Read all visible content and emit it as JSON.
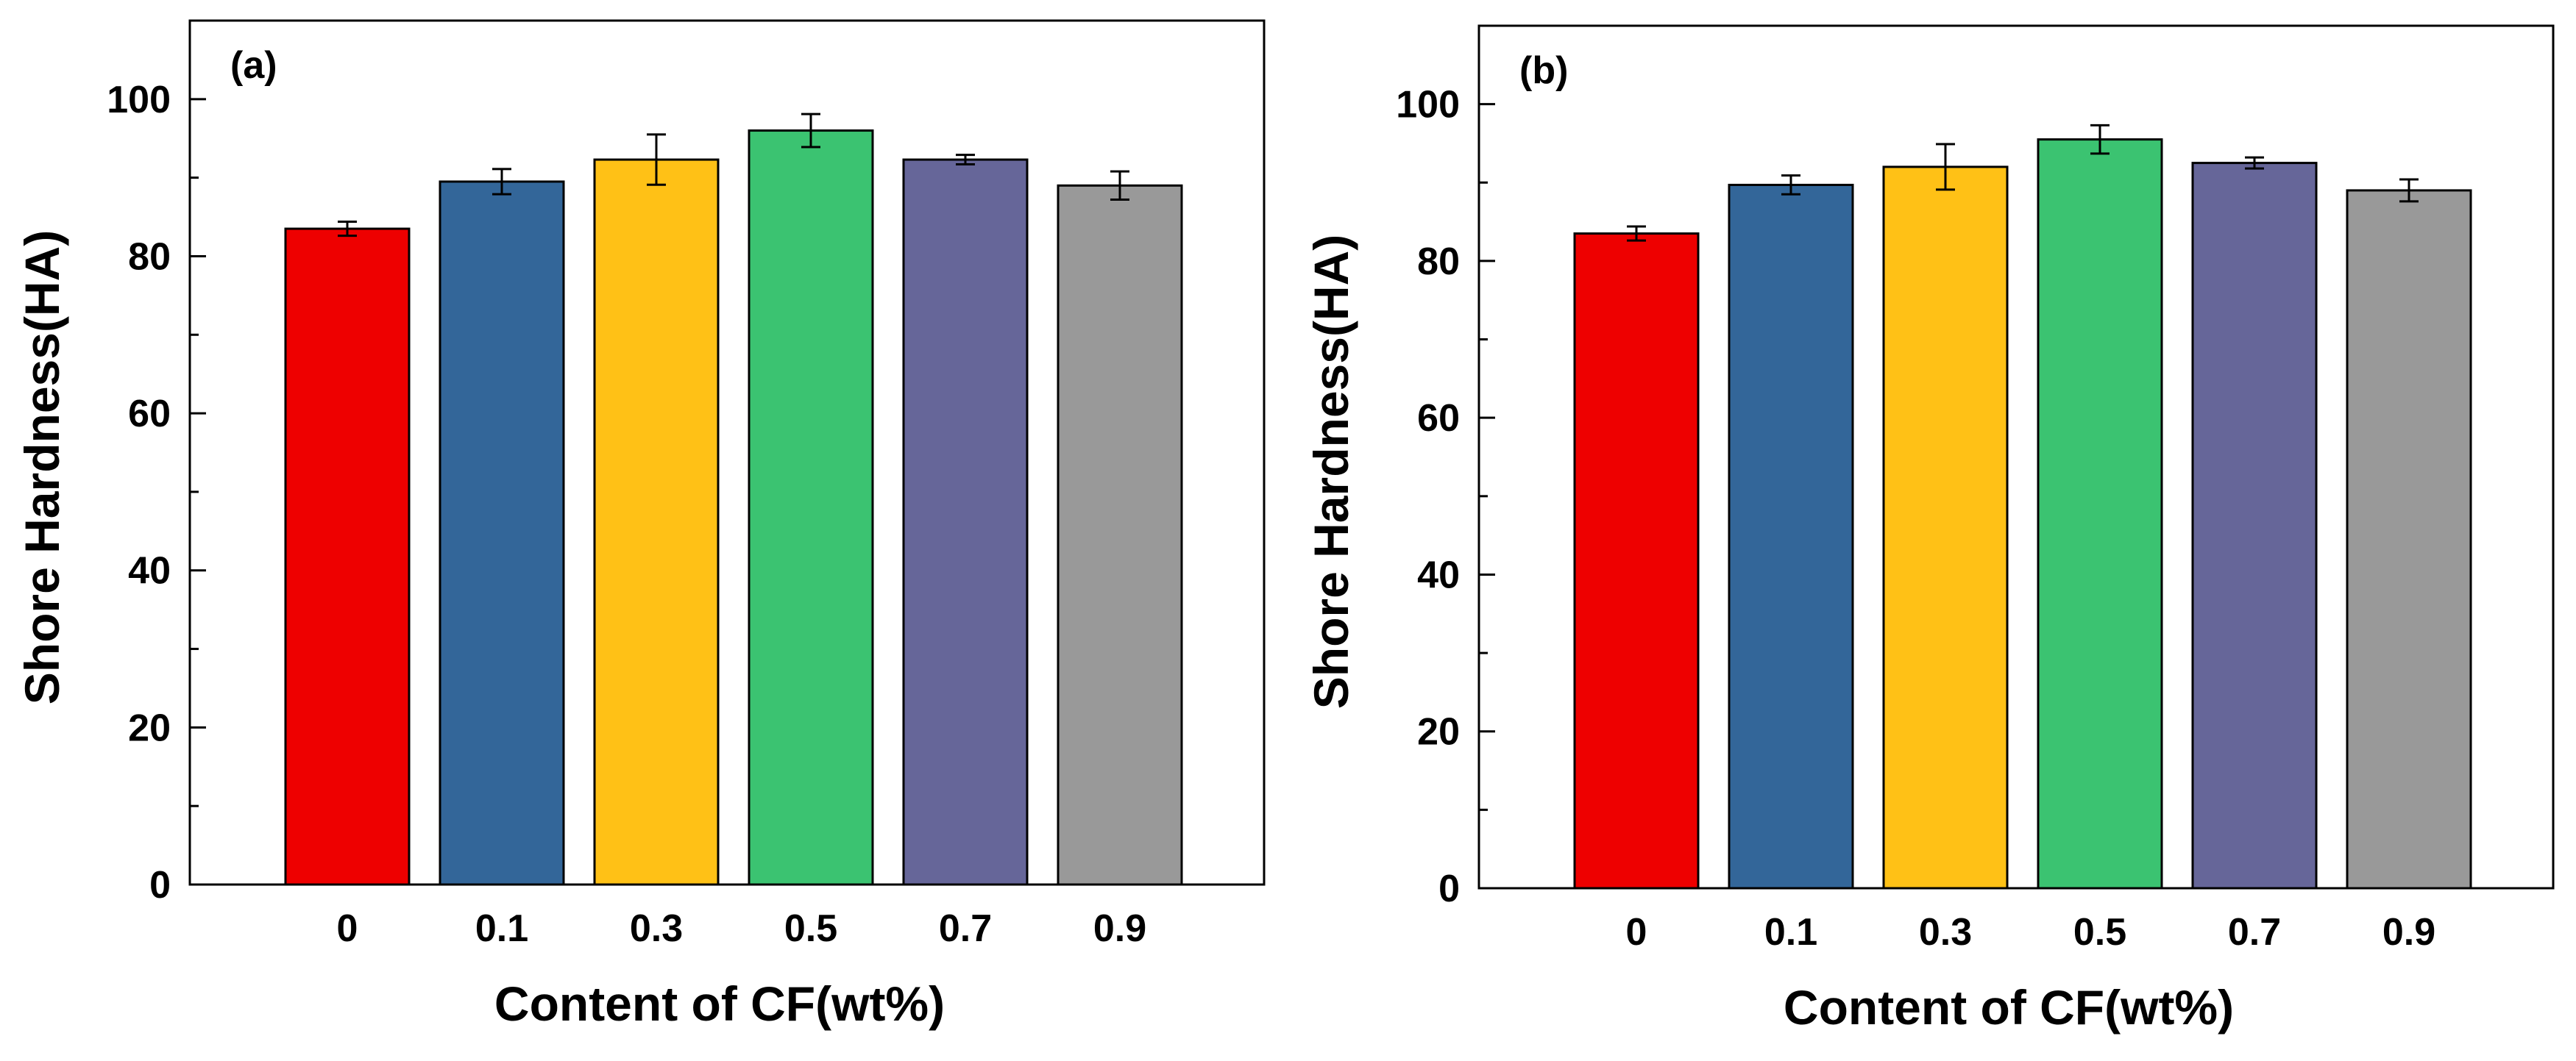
{
  "chart_data": [
    {
      "type": "bar",
      "panel_label": "(a)",
      "xlabel": "Content of CF(wt%)",
      "ylabel": "Shore Hardness(HA)",
      "categories": [
        "0",
        "0.1",
        "0.3",
        "0.5",
        "0.7",
        "0.9"
      ],
      "values": [
        83.5,
        89.5,
        92.3,
        96.0,
        92.3,
        89.0
      ],
      "errors": [
        0.9,
        1.6,
        3.2,
        2.1,
        0.6,
        1.8
      ],
      "colors": [
        "#ee0000",
        "#336699",
        "#ffc116",
        "#3bc371",
        "#666699",
        "#999999"
      ],
      "ylim": [
        0,
        110
      ],
      "yticks": [
        "0",
        "20",
        "40",
        "60",
        "80",
        "100"
      ]
    },
    {
      "type": "bar",
      "panel_label": "(b)",
      "xlabel": "Content of CF(wt%)",
      "ylabel": "Shore Hardness(HA)",
      "categories": [
        "0",
        "0.1",
        "0.3",
        "0.5",
        "0.7",
        "0.9"
      ],
      "values": [
        83.5,
        89.7,
        92.0,
        95.5,
        92.5,
        89.0
      ],
      "errors": [
        0.9,
        1.2,
        2.9,
        1.8,
        0.7,
        1.4
      ],
      "colors": [
        "#ee0000",
        "#336699",
        "#ffc116",
        "#3bc371",
        "#666699",
        "#999999"
      ],
      "ylim": [
        0,
        110
      ],
      "yticks": [
        "0",
        "20",
        "40",
        "60",
        "80",
        "100"
      ]
    }
  ]
}
